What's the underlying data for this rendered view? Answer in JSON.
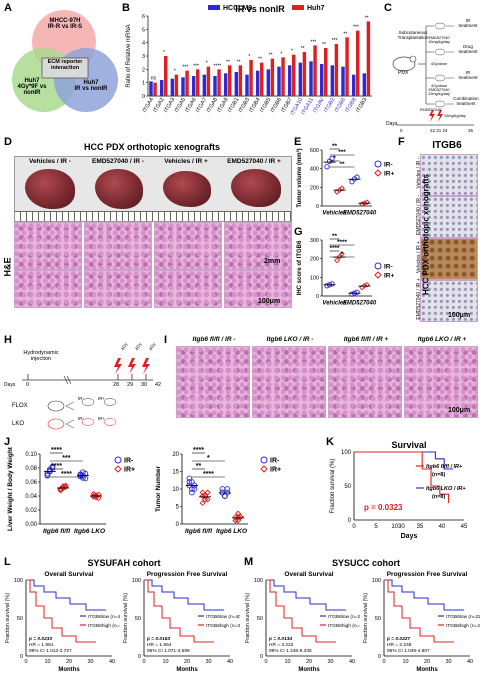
{
  "panels": {
    "A": {
      "letter": "A",
      "circle_top": "MHCC-97H\nIR-R vs IR-S",
      "circle_left": "Huh7\n4Gy*9F vs\nnonIR",
      "circle_right": "Huh7\nIR vs nonIR",
      "center_box": "ECM reporter\ninteraction",
      "colors": {
        "top": "#f4a9a8",
        "left": "#a9d98f",
        "right": "#8fa3d9"
      }
    },
    "B": {
      "letter": "B",
      "chart_data": {
        "type": "bar",
        "title": "IR vs nonIR",
        "ylabel": "Ratio of Relative mRNA",
        "ylim": [
          0,
          6
        ],
        "yticks": [
          0,
          1,
          2,
          3,
          4,
          5,
          6
        ],
        "categories": [
          "ITGA4",
          "ITGA2",
          "ITGA3",
          "ITGA5",
          "ITGA6",
          "ITGA7",
          "ITGA8",
          "ITGA9",
          "ITGB1",
          "ITGB3",
          "ITGB4",
          "ITGB5",
          "ITGB6",
          "ITGB7",
          "ITGA10",
          "ITGA11",
          "ITGAV",
          "ITGB2",
          "ITGB6",
          "ITGB8",
          "ITGB3"
        ],
        "series": [
          {
            "name": "HCCLM9",
            "color": "#2b2bd4",
            "values": [
              1.1,
              1.2,
              1.3,
              1.4,
              1.5,
              1.6,
              1.5,
              1.7,
              1.8,
              1.6,
              1.9,
              2.0,
              2.2,
              2.3,
              2.5,
              2.6,
              2.4,
              2.3,
              2.2,
              1.6,
              1.7
            ]
          },
          {
            "name": "Huh7",
            "color": "#e02020",
            "values": [
              1.0,
              3.0,
              1.6,
              1.9,
              2.0,
              2.2,
              2.0,
              2.3,
              2.3,
              2.7,
              2.5,
              2.8,
              2.9,
              3.1,
              3.3,
              3.8,
              3.6,
              3.9,
              4.4,
              4.9,
              5.6
            ]
          }
        ],
        "sig": [
          "ns",
          "*",
          "*",
          "***",
          "***",
          "*",
          "****",
          "**",
          "**",
          "*",
          "**",
          "**",
          "*",
          "*",
          "**",
          "***",
          "**",
          "***",
          "**",
          "***",
          "**"
        ]
      }
    },
    "C": {
      "letter": "C",
      "label_transplant": "Subcutaneous\nTransplantation",
      "label_pdx": "PDX",
      "arms": [
        "IR\ntreatment",
        "Drug\ntreatment",
        "IR\ntreatment",
        "Combination\ntreatment"
      ],
      "doses": [
        "EMD527040\n10mg/kg/day",
        "4Gy/dose",
        "4Gy/dose\nEMD527040\n10mg/kg/day"
      ],
      "days_label": "Days",
      "days": [
        "0",
        "22 21 24",
        "35"
      ],
      "timeline_labels": [
        "EMD527040",
        "10mg/kg/day"
      ]
    },
    "D": {
      "letter": "D",
      "title": "HCC PDX orthotopic xenografts",
      "groups": [
        "Vehicles / IR -",
        "EMD527040 / IR -",
        "Vehicles / IR +",
        "EMD527040 / IR +"
      ],
      "stain_label": "H&E",
      "scale1": "2mm",
      "scale2": "100μm"
    },
    "E": {
      "letter": "E",
      "chart_data": {
        "type": "scatter",
        "ylabel": "Tumor volume (mm³)",
        "ylim": [
          0,
          600
        ],
        "yticks": [
          0,
          200,
          400,
          600
        ],
        "categories": [
          "Vehicles",
          "EMD527040"
        ],
        "series": [
          {
            "name": "IR-",
            "color": "#2b2bd4",
            "values": [
              [
                420,
                480,
                510
              ],
              [
                260,
                290,
                310
              ]
            ]
          },
          {
            "name": "IR+",
            "color": "#e02020",
            "values": [
              [
                150,
                170,
                190
              ],
              [
                20,
                30,
                40
              ]
            ]
          }
        ],
        "sig": [
          "**",
          "***",
          "*",
          "**"
        ]
      }
    },
    "F": {
      "letter": "F",
      "title": "ITGB6",
      "side_title": "HCC PDX orthotopic xenografts",
      "rows": [
        "Vehicles / IR -",
        "EMD527040 / IR -",
        "Vehicles / IR +",
        "EMD527040 / IR +"
      ],
      "scale": "100μm"
    },
    "G": {
      "letter": "G",
      "chart_data": {
        "type": "scatter",
        "ylabel": "IHC score of ITGB6",
        "ylim": [
          0,
          300
        ],
        "yticks": [
          0,
          100,
          200,
          300
        ],
        "categories": [
          "Vehicles",
          "EMD527040"
        ],
        "series": [
          {
            "name": "IR-",
            "color": "#2b2bd4",
            "values": [
              [
                55,
                60,
                65
              ],
              [
                10,
                15,
                20
              ]
            ]
          },
          {
            "name": "IR+",
            "color": "#e02020",
            "values": [
              [
                190,
                210,
                225
              ],
              [
                45,
                55,
                60
              ]
            ]
          }
        ],
        "sig": [
          "**",
          "****",
          "****",
          "*"
        ]
      }
    },
    "H": {
      "letter": "H",
      "injection": "Hydrodynamic\ninjection",
      "days_label": "Days",
      "days": [
        "0",
        "28",
        "29",
        "30",
        "42"
      ],
      "doses": [
        "4Gy",
        "4Gy",
        "4Gy"
      ],
      "flox": "FLOX",
      "lko": "LKO",
      "arm_labels": [
        "IR-",
        "IR+",
        "IR-",
        "IR+"
      ]
    },
    "I": {
      "letter": "I",
      "labels": [
        "Itgb6 fl/fl / IR -",
        "Itgb6 LKO / IR -",
        "Itgb6 fl/fl / IR +",
        "Itgb6 LKO / IR +"
      ],
      "scale": "100μm"
    },
    "J": {
      "letter": "J",
      "chart_left": {
        "type": "scatter",
        "ylabel": "Liver Weight / Body Weight",
        "ylim": [
          0.0,
          0.1
        ],
        "yticks": [
          "0.00",
          "0.02",
          "0.04",
          "0.06",
          "0.08",
          "0.10"
        ],
        "categories": [
          "Itgb6 fl/fl",
          "Itgb6 LKO"
        ],
        "series": [
          {
            "name": "IR-",
            "values": [
              [
                0.07,
                0.075,
                0.08,
                0.072,
                0.078,
                0.082,
                0.069,
                0.076
              ],
              [
                0.07,
                0.066,
                0.072,
                0.068,
                0.074,
                0.065,
                0.071,
                0.069
              ]
            ]
          },
          {
            "name": "IR+",
            "values": [
              [
                0.05,
                0.052,
                0.055,
                0.048,
                0.051,
                0.053,
                0.049,
                0.054
              ],
              [
                0.04,
                0.038,
                0.042,
                0.039,
                0.041,
                0.037,
                0.043,
                0.04
              ]
            ]
          }
        ],
        "sig": [
          "****",
          "***",
          "****",
          "****"
        ]
      },
      "chart_right": {
        "type": "scatter",
        "ylabel": "Tumor Number",
        "ylim": [
          0,
          20
        ],
        "yticks": [
          "0",
          "5",
          "10",
          "15",
          "20"
        ],
        "categories": [
          "Itgb6 fl/fl",
          "Itgb6 LKO"
        ],
        "series": [
          {
            "name": "IR-",
            "values": [
              [
                11,
                12,
                10,
                13,
                9,
                11,
                12,
                10
              ],
              [
                9,
                8,
                10,
                9,
                8,
                9,
                10,
                8
              ]
            ]
          },
          {
            "name": "IR+",
            "values": [
              [
                8,
                7,
                9,
                6,
                8,
                7,
                9,
                8
              ],
              [
                2,
                1,
                2,
                1,
                3,
                2,
                1,
                2
              ]
            ]
          }
        ],
        "sig": [
          "****",
          "*",
          "**",
          "****"
        ]
      },
      "legend": [
        "IR-",
        "IR+"
      ]
    },
    "K": {
      "letter": "K",
      "chart_data": {
        "type": "line",
        "title": "Survival",
        "xlabel": "Days",
        "ylabel": "Fraction survival (%)",
        "xticks": [
          "0",
          "5",
          "1030",
          "35",
          "40",
          "45"
        ],
        "yticks": [
          "0",
          "50",
          "100"
        ],
        "series": [
          {
            "name": "Itgb6 fl/fl / IR+",
            "n": "(n=8)",
            "color": "#e02020"
          },
          {
            "name": "Itgb6 LKO / IR+",
            "n": "(n=8)",
            "color": "#2b2bd4"
          }
        ],
        "p_value": "p = 0.0323"
      }
    },
    "L": {
      "letter": "L",
      "title": "SYSUFAH cohort",
      "left": {
        "title": "Overall Survival",
        "ylabel": "Fraction survival (%)",
        "xlabel": "Months",
        "legend": [
          "ITGB6low (n=40)",
          "ITGB6high (n=37)"
        ],
        "stats": [
          "p = 0.0233",
          "HR = 1.961",
          "95% CI 1.013-3.727"
        ]
      },
      "right": {
        "title": "Progression Free Survival",
        "ylabel": "Fraction survival (%)",
        "xlabel": "Months",
        "legend": [
          "ITGB6low (n=40)",
          "ITGB6high (n=37)"
        ],
        "stats": [
          "p = 0.0163",
          "HR = 1.964",
          "95% CI 1.071-3.599"
        ]
      }
    },
    "M": {
      "letter": "M",
      "title": "SYSUCC cohort",
      "left": {
        "title": "Overall Survival",
        "ylabel": "Fraction survival (%)",
        "xlabel": "Months",
        "legend": [
          "ITGB6low (n=22)",
          "ITGB6high (n=20)"
        ],
        "stats": [
          "p = 0.0134",
          "HR = 3.222",
          "95% CI 1.246-8.335"
        ]
      },
      "right": {
        "title": "Progression Free Survival",
        "ylabel": "Fraction survival (%)",
        "xlabel": "Months",
        "legend": [
          "ITGB6low (n=22)",
          "ITGB6high (n=20)"
        ],
        "stats": [
          "p = 0.0227",
          "HR = 2.248",
          "95% CI 1.049-4.807"
        ]
      }
    }
  }
}
